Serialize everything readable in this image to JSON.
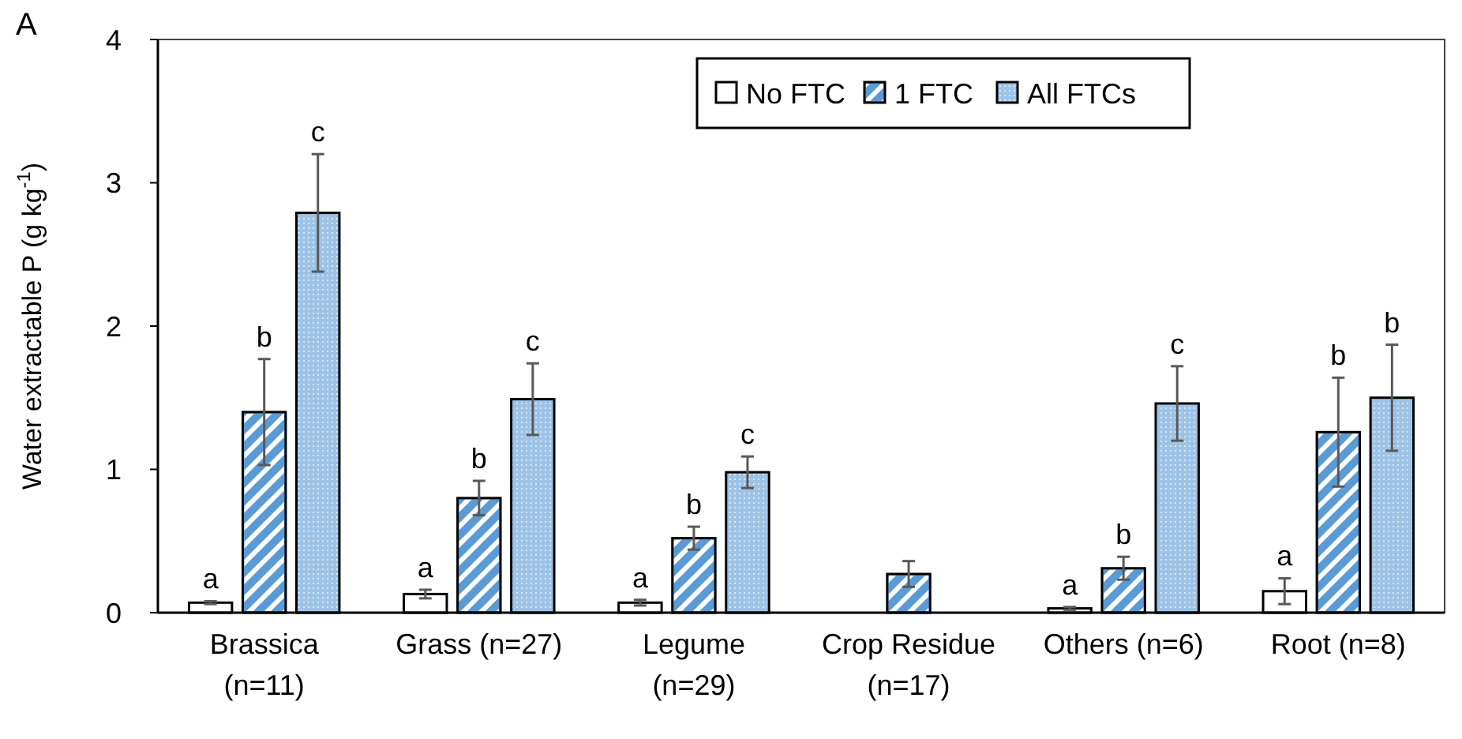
{
  "chart_data": {
    "type": "bar",
    "title": "A",
    "ylabel": "Water extractable P (g kg$^{-1}$)",
    "categories": [
      "Brassica\n(n=11)",
      "Grass (n=27)",
      "Legume\n(n=29)",
      "Crop Residue\n(n=17)",
      "Others (n=6)",
      "Root (n=8)"
    ],
    "series": [
      {
        "name": "No FTC",
        "color": "#ffffff",
        "values": [
          0.07,
          0.13,
          0.07,
          null,
          0.03,
          0.15
        ],
        "errors": [
          0.01,
          0.03,
          0.02,
          null,
          0.01,
          0.09
        ],
        "value_labels": [
          "a",
          "a",
          "a",
          null,
          "a",
          "a"
        ]
      },
      {
        "name": "1 FTC",
        "color": "#5b9bd5",
        "values": [
          1.4,
          0.8,
          0.52,
          0.27,
          0.31,
          1.26
        ],
        "errors": [
          0.37,
          0.12,
          0.08,
          0.09,
          0.08,
          0.38
        ],
        "value_labels": [
          "b",
          "b",
          "b",
          null,
          "b",
          "b"
        ]
      },
      {
        "name": "All FTCs",
        "color": "#9dc3e6",
        "values": [
          2.79,
          1.49,
          0.98,
          null,
          1.46,
          1.5
        ],
        "errors": [
          0.41,
          0.25,
          0.11,
          null,
          0.26,
          0.37
        ],
        "value_labels": [
          "c",
          "c",
          "c",
          null,
          "c",
          "b"
        ]
      }
    ],
    "ylim": [
      0,
      4
    ],
    "yticks": [
      0,
      1,
      2,
      3,
      4
    ],
    "grid": false,
    "legend": "top"
  }
}
